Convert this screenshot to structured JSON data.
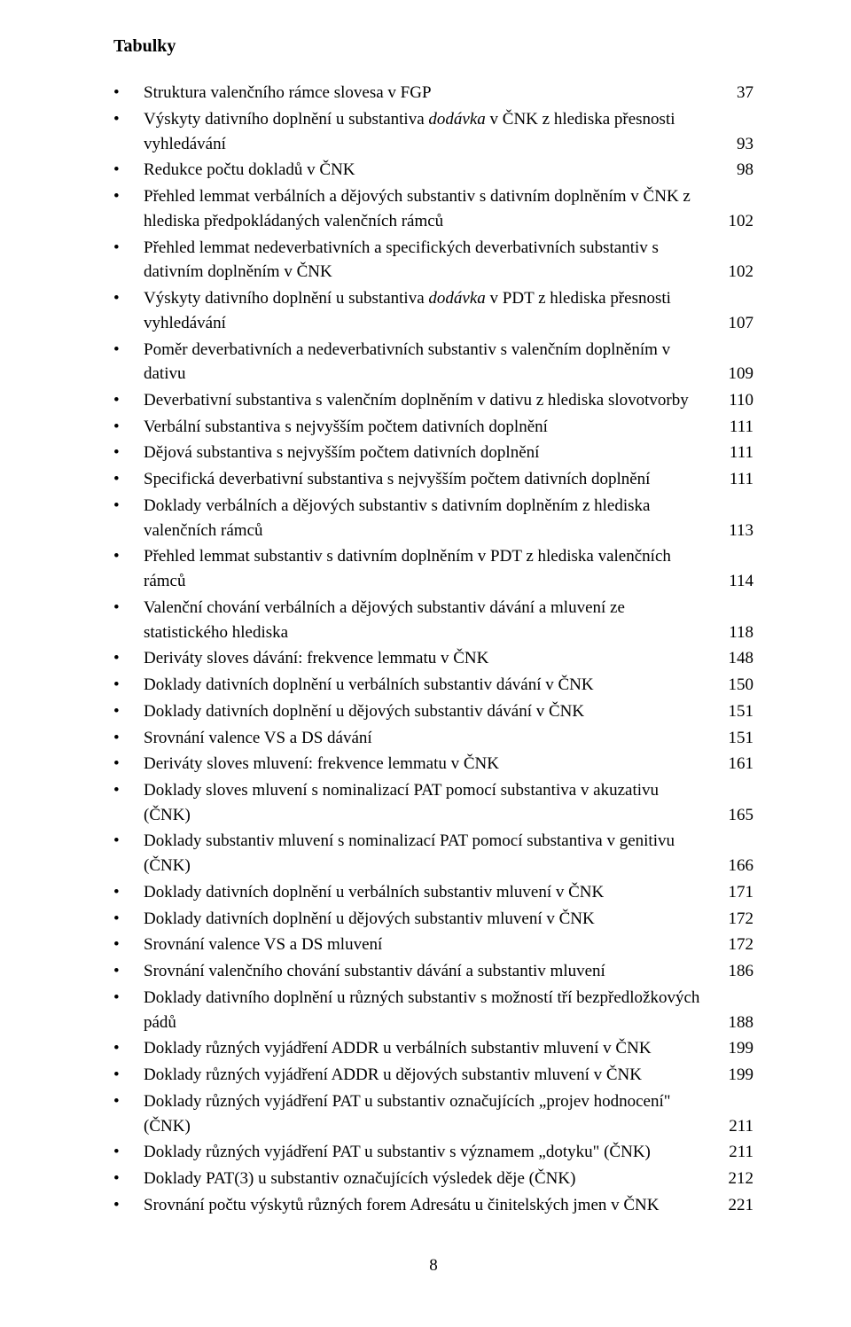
{
  "page": {
    "title": "Tabulky",
    "footer_page_number": "8"
  },
  "toc": [
    {
      "text": "Struktura valenčního rámce slovesa v FGP",
      "page": "37"
    },
    {
      "pre": "Výskyty dativního doplnění u substantiva ",
      "italic": "dodávka",
      "post": " v ČNK z hlediska přesnosti vyhledávání",
      "page": "93"
    },
    {
      "text": "Redukce počtu dokladů v ČNK",
      "page": "98"
    },
    {
      "text": "Přehled lemmat verbálních a dějových substantiv s dativním doplněním v ČNK z hlediska předpokládaných valenčních rámců",
      "page": "102"
    },
    {
      "text": "Přehled lemmat nedeverbativních a specifických deverbativních substantiv s dativním doplněním v ČNK",
      "page": "102"
    },
    {
      "pre": "Výskyty dativního doplnění u substantiva ",
      "italic": "dodávka",
      "post": " v PDT z hlediska přesnosti vyhledávání",
      "page": "107"
    },
    {
      "text": "Poměr deverbativních a nedeverbativních substantiv s valenčním doplněním v dativu",
      "page": "109"
    },
    {
      "text": "Deverbativní substantiva s valenčním doplněním v dativu z hlediska slovotvorby",
      "page": "110"
    },
    {
      "text": "Verbální substantiva s nejvyšším počtem dativních doplnění",
      "page": "111"
    },
    {
      "text": "Dějová substantiva s nejvyšším počtem dativních doplnění",
      "page": "111"
    },
    {
      "text": "Specifická deverbativní substantiva s nejvyšším počtem dativních doplnění",
      "page": "111"
    },
    {
      "text": "Doklady verbálních a dějových substantiv s dativním doplněním z hlediska valenčních rámců",
      "page": "113"
    },
    {
      "text": "Přehled lemmat substantiv s dativním doplněním v PDT z hlediska valenčních rámců",
      "page": "114"
    },
    {
      "text": "Valenční chování verbálních a dějových substantiv dávání a mluvení ze statistického hlediska",
      "page": "118"
    },
    {
      "text": "Deriváty sloves dávání: frekvence lemmatu v ČNK",
      "page": "148"
    },
    {
      "text": "Doklady dativních doplnění u verbálních substantiv dávání v ČNK",
      "page": "150"
    },
    {
      "text": "Doklady dativních doplnění u dějových substantiv dávání v ČNK",
      "page": "151"
    },
    {
      "text": "Srovnání valence VS a DS dávání",
      "page": "151"
    },
    {
      "text": "Deriváty sloves mluvení: frekvence lemmatu v ČNK",
      "page": "161"
    },
    {
      "text": "Doklady sloves mluvení s nominalizací PAT pomocí substantiva v akuzativu (ČNK)",
      "page": "165"
    },
    {
      "text": "Doklady substantiv mluvení s nominalizací PAT pomocí substantiva v genitivu (ČNK)",
      "page": "166"
    },
    {
      "text": "Doklady dativních doplnění u verbálních substantiv mluvení v ČNK",
      "page": "171"
    },
    {
      "text": "Doklady dativních doplnění u dějových substantiv mluvení v ČNK",
      "page": "172"
    },
    {
      "text": "Srovnání valence VS a DS mluvení",
      "page": "172"
    },
    {
      "text": "Srovnání valenčního chování substantiv dávání a substantiv mluvení",
      "page": "186"
    },
    {
      "text": "Doklady dativního doplnění u různých substantiv s možností tří bezpředložkových pádů",
      "page": "188"
    },
    {
      "text": "Doklady různých vyjádření ADDR u verbálních substantiv mluvení v ČNK",
      "page": "199"
    },
    {
      "text": "Doklady různých vyjádření ADDR u dějových substantiv mluvení v ČNK",
      "page": "199"
    },
    {
      "text": "Doklady různých vyjádření PAT u substantiv označujících „projev hodnocení\" (ČNK)",
      "page": "211"
    },
    {
      "text": "Doklady různých vyjádření PAT u substantiv s významem „dotyku\" (ČNK)",
      "page": "211"
    },
    {
      "text": "Doklady PAT(3) u substantiv označujících výsledek děje (ČNK)",
      "page": "212"
    },
    {
      "text": "Srovnání počtu výskytů různých forem Adresátu u činitelských jmen v ČNK",
      "page": "221"
    }
  ]
}
